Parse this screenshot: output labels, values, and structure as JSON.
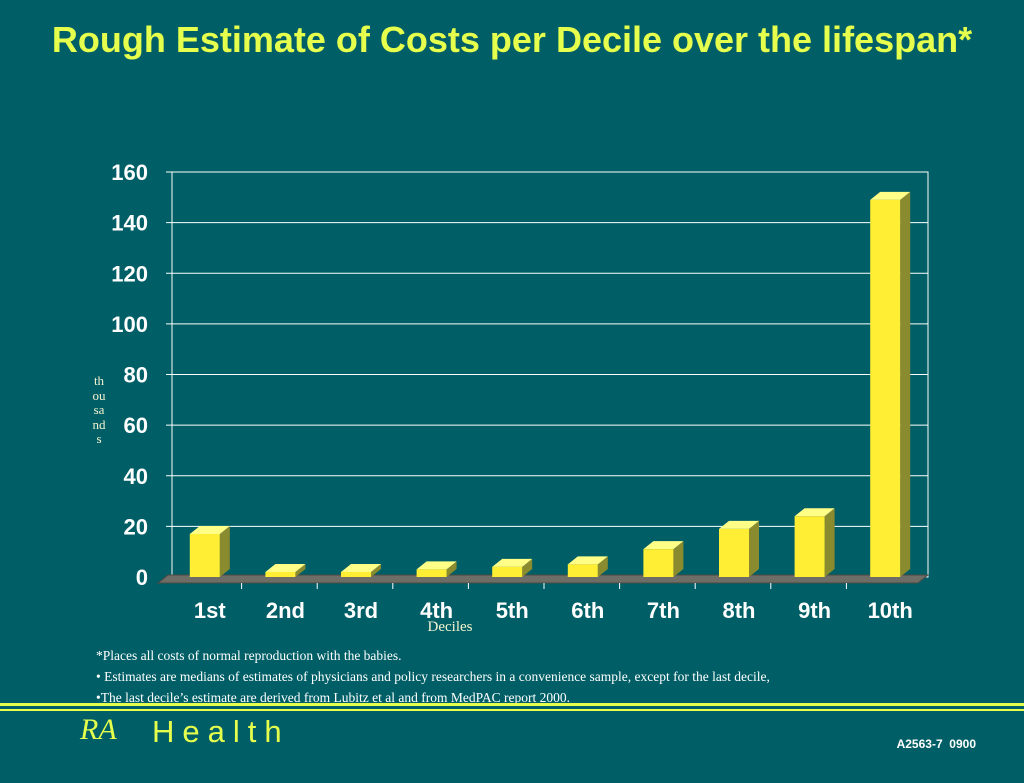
{
  "slide": {
    "title": "Rough Estimate of Costs per Decile over the lifespan*",
    "notes": [
      "*Places all costs of normal reproduction with the babies.",
      "• Estimates are medians of estimates of physicians and policy researchers in a convenience sample, except for the last decile,",
      "•The last decile’s estimate are derived from Lubitz et al and from MedPAC report 2000."
    ],
    "brand_ra": "RA",
    "brand_name": "Health",
    "code": "A2563-7  0900"
  },
  "colors": {
    "background": "#005f66",
    "title": "#e6ff4d",
    "bar_front": "#ffee33",
    "bar_side": "#8a8a2e",
    "bar_top": "#ffff88",
    "grid": "#ffffff"
  },
  "chart_data": {
    "type": "bar",
    "title": "",
    "xlabel": "Deciles",
    "ylabel": "thousands",
    "categories": [
      "1st",
      "2nd",
      "3rd",
      "4th",
      "5th",
      "6th",
      "7th",
      "8th",
      "9th",
      "10th"
    ],
    "values": [
      17,
      2,
      2,
      3,
      4,
      5,
      11,
      19,
      24,
      149
    ],
    "ylim": [
      0,
      160
    ],
    "yticks": [
      0,
      20,
      40,
      60,
      80,
      100,
      120,
      140,
      160
    ],
    "grid": true,
    "style": "3d-column"
  }
}
